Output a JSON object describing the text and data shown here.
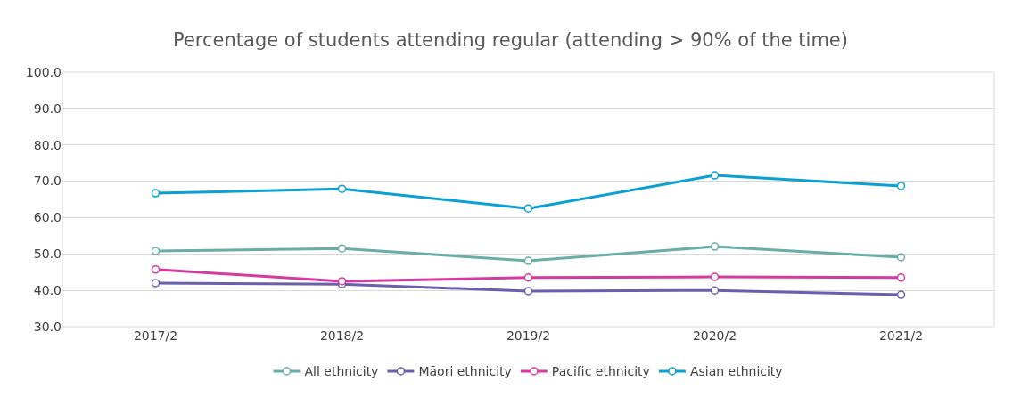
{
  "chart_data": {
    "type": "line",
    "title": "Percentage of students attending regular (attending > 90% of the time)",
    "categories": [
      "2017/2",
      "2018/2",
      "2019/2",
      "2020/2",
      "2021/2"
    ],
    "series": [
      {
        "name": "All ethnicity",
        "color": "#6aaca8",
        "values": [
          50.8,
          51.5,
          48.1,
          52.0,
          49.1
        ]
      },
      {
        "name": "Māori ethnicity",
        "color": "#6a5fad",
        "values": [
          42.0,
          41.7,
          39.8,
          40.0,
          38.8
        ]
      },
      {
        "name": "Pacific ethnicity",
        "color": "#d6399f",
        "values": [
          45.7,
          42.5,
          43.5,
          43.7,
          43.5
        ]
      },
      {
        "name": "Asian ethnicity",
        "color": "#0aa0d2",
        "values": [
          66.7,
          67.9,
          62.5,
          71.6,
          68.7
        ]
      }
    ],
    "ylim": [
      30,
      100
    ],
    "yticks": [
      {
        "value": 30,
        "label": "30.0"
      },
      {
        "value": 40,
        "label": "40.0"
      },
      {
        "value": 50,
        "label": "50.0"
      },
      {
        "value": 60,
        "label": "60.0"
      },
      {
        "value": 70,
        "label": "70.0"
      },
      {
        "value": 80,
        "label": "80.0"
      },
      {
        "value": 90,
        "label": "90.0"
      },
      {
        "value": 100,
        "label": "100.0"
      }
    ],
    "grid": "y",
    "legend": "bottom",
    "marker": "circle",
    "line_style": "solid"
  }
}
